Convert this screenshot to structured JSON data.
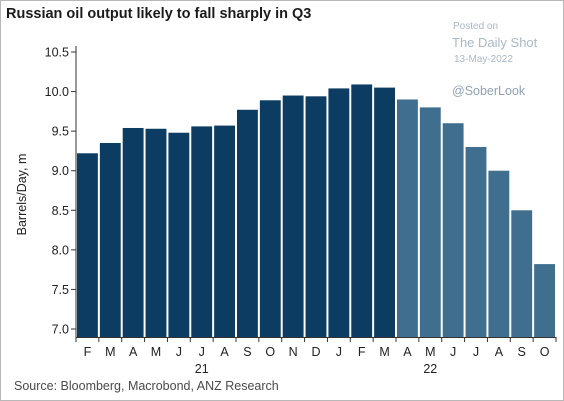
{
  "chart_data": {
    "type": "bar",
    "title": "Russian oil output likely to fall sharply in Q3",
    "ylabel": "Barrels/Day, m",
    "xlabel": "",
    "ylim": [
      7.0,
      10.5
    ],
    "yticks": [
      "7.0",
      "7.5",
      "8.0",
      "8.5",
      "9.0",
      "9.5",
      "10.0",
      "10.5"
    ],
    "categories": [
      "F",
      "M",
      "A",
      "M",
      "J",
      "J",
      "A",
      "S",
      "O",
      "N",
      "D",
      "J",
      "F",
      "M",
      "A",
      "M",
      "J",
      "J",
      "A",
      "S",
      "O"
    ],
    "year_labels": [
      {
        "text": "21",
        "category_index": 5
      },
      {
        "text": "22",
        "category_index": 15
      }
    ],
    "series": [
      {
        "values": [
          9.22,
          9.35,
          9.54,
          9.53,
          9.48,
          9.56,
          9.57,
          9.77,
          9.89,
          9.95,
          9.94,
          10.04,
          10.09,
          10.05,
          9.9,
          9.8,
          9.6,
          9.3,
          9.0,
          8.5,
          7.82
        ]
      }
    ],
    "bar_kinds": [
      "actual",
      "actual",
      "actual",
      "actual",
      "actual",
      "actual",
      "actual",
      "actual",
      "actual",
      "actual",
      "actual",
      "actual",
      "actual",
      "actual",
      "forecast",
      "forecast",
      "forecast",
      "forecast",
      "forecast",
      "forecast",
      "forecast"
    ],
    "colors": {
      "actual": "#0c3c61",
      "forecast": "#3f6e8e"
    },
    "grid": false,
    "source": "Source:  Bloomberg, Macrobond, ANZ Research"
  },
  "watermark": {
    "posted": "Posted on",
    "site": "The Daily Shot",
    "date": "13-May-2022",
    "handle": "@SoberLook"
  }
}
